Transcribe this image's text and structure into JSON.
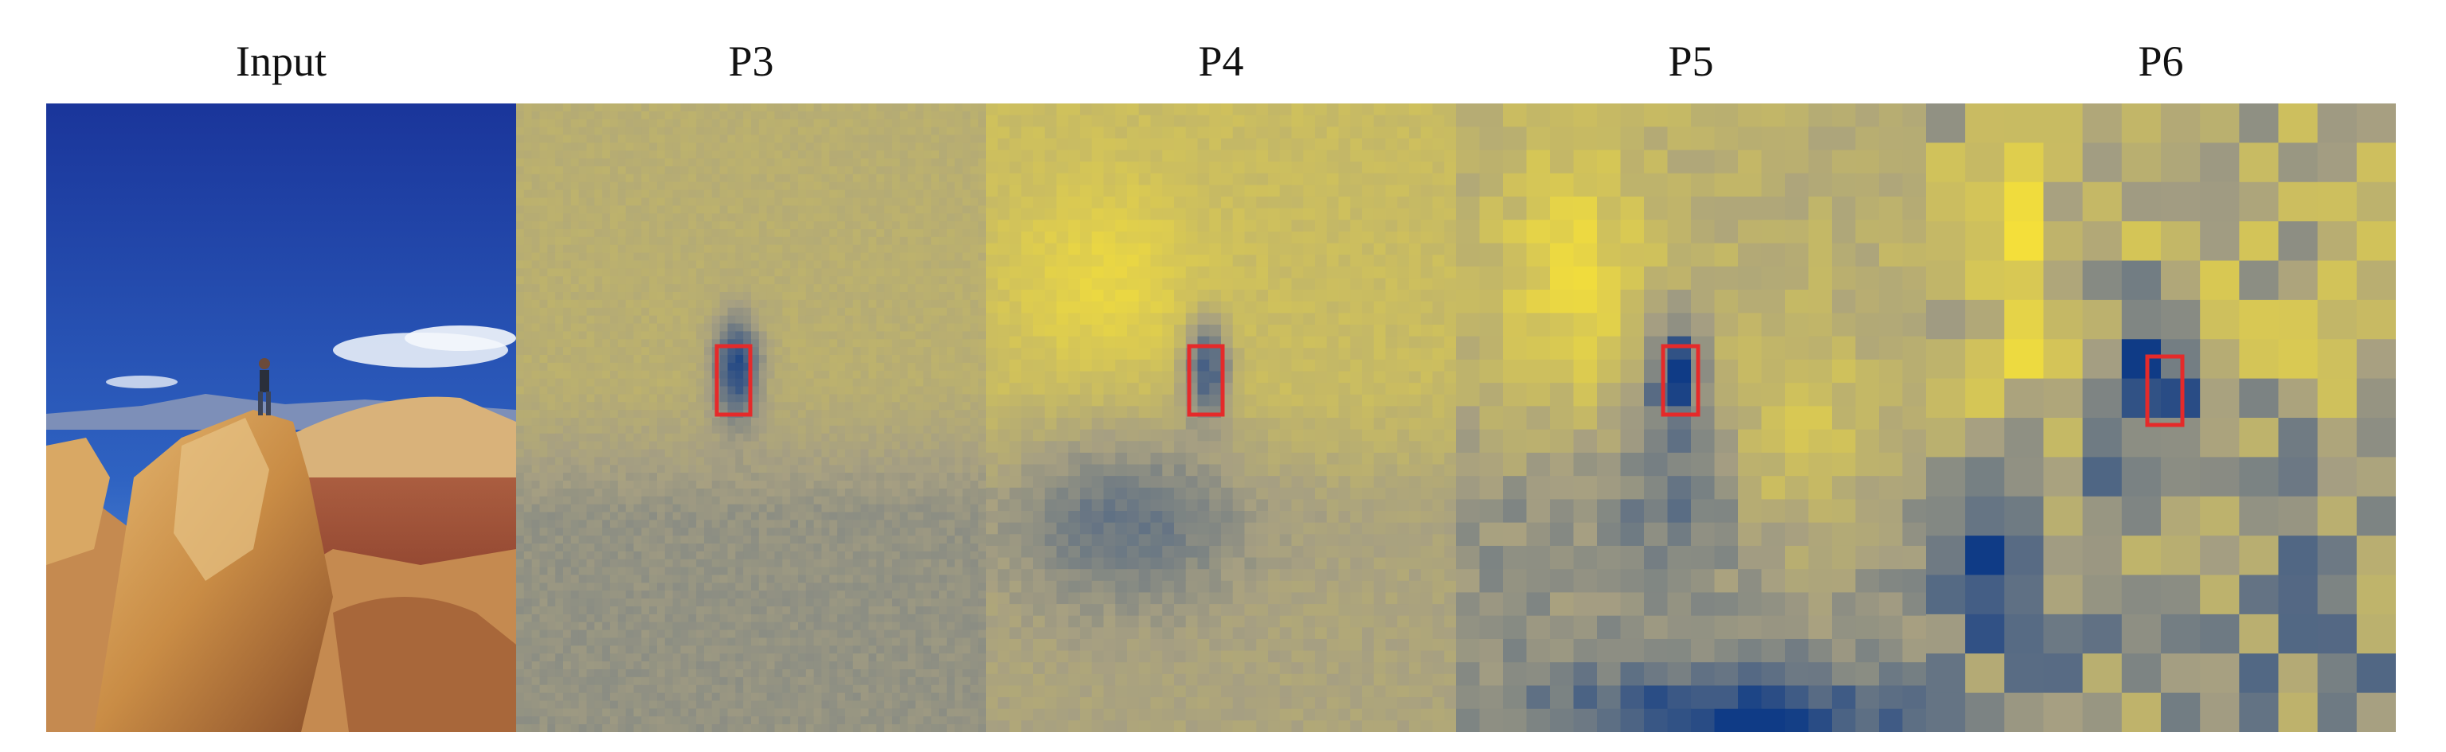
{
  "panels": [
    {
      "id": "input",
      "title": "Input"
    },
    {
      "id": "p3",
      "title": "P3"
    },
    {
      "id": "p4",
      "title": "P4"
    },
    {
      "id": "p5",
      "title": "P5"
    },
    {
      "id": "p6",
      "title": "P6"
    }
  ],
  "colors": {
    "map_low": "#0f3b86",
    "map_mid": "#a69f82",
    "map_high": "#f4df3a",
    "box": "#e52a2a",
    "sky_top": "#1e3ea6",
    "sky_bottom": "#4a86d6",
    "rock": "#d6a25a"
  }
}
